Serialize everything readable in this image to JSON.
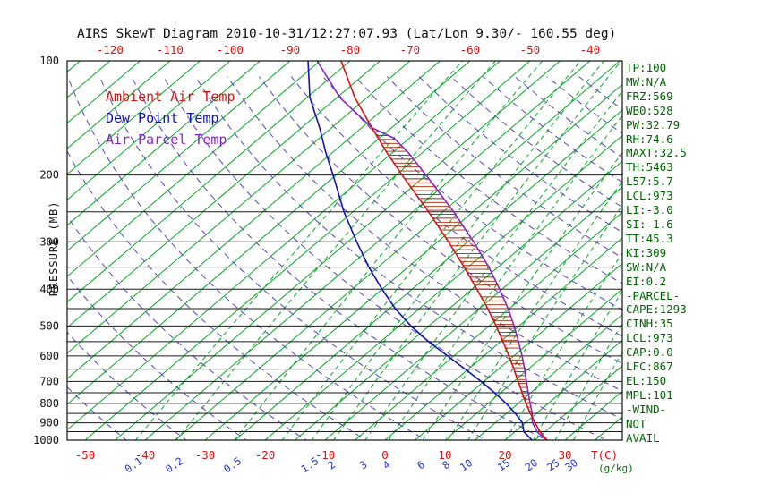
{
  "title": "AIRS SkewT Diagram 2010-10-31/12:27:07.93 (Lat/Lon 9.30/- 160.55 deg)",
  "axes": {
    "pressure_label": "PRESSURE (MB)",
    "pressure_ticks": [
      100,
      200,
      300,
      400,
      500,
      600,
      700,
      800,
      900,
      1000
    ],
    "top_temp_ticks": [
      -120,
      -110,
      -100,
      -90,
      -80,
      -70,
      -60,
      -50,
      -40
    ],
    "bottom_temp_ticks": [
      -50,
      -40,
      -30,
      -20,
      -10,
      0,
      10,
      20,
      30
    ],
    "mixing_ratio_ticks": [
      0.1,
      0.2,
      0.5,
      1.5,
      2,
      3,
      4,
      6,
      8,
      10,
      15,
      20,
      25,
      30
    ],
    "temp_unit_label": "T(C)",
    "mixing_unit_label": "(g/kg)"
  },
  "legend": [
    {
      "label": "Ambient Air Temp",
      "color": "#dd1111"
    },
    {
      "label": "Dew Point Temp",
      "color": "#1111bb"
    },
    {
      "label": "Air Parcel Temp",
      "color": "#8822cc"
    }
  ],
  "stats_panel": [
    "TP:100",
    "MW:N/A",
    "FRZ:569",
    "WB0:528",
    "PW:32.79",
    "RH:74.6",
    "MAXT:32.5",
    "TH:5463",
    "L57:5.7",
    "LCL:973",
    "LI:-3.0",
    "SI:-1.6",
    "TT:45.3",
    "KI:309",
    "SW:N/A",
    "EI:0.2",
    "-PARCEL-",
    "CAPE:1293",
    "CINH:35",
    "LCL:973",
    "CAP:0.0",
    "LFC:867",
    "EL:150",
    "MPL:101",
    "-WIND-",
    "NOT",
    "AVAIL"
  ],
  "colors": {
    "isotherm": "#00aa22",
    "mixing_ratio": "#00aa22",
    "dry_adiabat": "#5544bb",
    "pressure_line": "#1a1a1a",
    "hatch": "#aa2200",
    "stats_text": "#006600",
    "top_axis_text": "#dd1111",
    "bottom_temp_text": "#dd1111",
    "mixing_text": "#2233cc",
    "gkg_text": "#007700"
  },
  "chart_data": {
    "type": "line",
    "subtype": "skewt-logp",
    "pressure_axis": {
      "min": 100,
      "max": 1000,
      "scale": "log"
    },
    "isotherms": {
      "min": -130,
      "max": 45,
      "step": 5
    },
    "pressure_lines": [
      100,
      200,
      250,
      300,
      350,
      400,
      450,
      500,
      550,
      600,
      650,
      700,
      750,
      800,
      850,
      900,
      950,
      1000
    ],
    "mixing_ratio_lines": [
      0.1,
      0.2,
      0.5,
      1,
      1.5,
      2,
      3,
      4,
      6,
      8,
      10,
      15,
      20,
      25,
      30
    ],
    "dry_adiabats_theta_K": [
      230,
      240,
      250,
      260,
      270,
      280,
      290,
      300,
      310,
      320,
      330,
      340,
      350,
      360,
      370,
      380,
      390,
      400,
      410,
      420,
      430,
      440
    ],
    "cape_region": {
      "from_pressure": 867,
      "to_pressure": 150
    },
    "series": [
      {
        "name": "Ambient Air Temp",
        "color": "#dd1111",
        "points": [
          [
            1000,
            27.0
          ],
          [
            950,
            24.2
          ],
          [
            900,
            21.6
          ],
          [
            850,
            19.0
          ],
          [
            800,
            16.3
          ],
          [
            750,
            13.6
          ],
          [
            700,
            10.7
          ],
          [
            650,
            7.6
          ],
          [
            600,
            4.2
          ],
          [
            550,
            0.4
          ],
          [
            500,
            -3.8
          ],
          [
            450,
            -8.6
          ],
          [
            400,
            -14.2
          ],
          [
            350,
            -20.6
          ],
          [
            300,
            -28.2
          ],
          [
            250,
            -37.4
          ],
          [
            200,
            -49.0
          ],
          [
            175,
            -55.8
          ],
          [
            150,
            -63.3
          ],
          [
            125,
            -72.0
          ],
          [
            100,
            -81.5
          ]
        ]
      },
      {
        "name": "Dew Point Temp",
        "color": "#1111bb",
        "points": [
          [
            1000,
            24.5
          ],
          [
            950,
            21.5
          ],
          [
            900,
            19.5
          ],
          [
            850,
            16.5
          ],
          [
            800,
            13.0
          ],
          [
            750,
            9.0
          ],
          [
            700,
            4.5
          ],
          [
            650,
            -0.5
          ],
          [
            600,
            -6.0
          ],
          [
            550,
            -12.0
          ],
          [
            500,
            -18.0
          ],
          [
            450,
            -24.0
          ],
          [
            400,
            -30.0
          ],
          [
            350,
            -36.5
          ],
          [
            300,
            -43.5
          ],
          [
            250,
            -51.5
          ],
          [
            200,
            -60.5
          ],
          [
            175,
            -66.0
          ],
          [
            150,
            -72.0
          ],
          [
            125,
            -79.5
          ],
          [
            100,
            -87.0
          ]
        ]
      },
      {
        "name": "Air Parcel Temp",
        "color": "#8822cc",
        "points": [
          [
            1000,
            27.0
          ],
          [
            973,
            25.2
          ],
          [
            950,
            23.7
          ],
          [
            900,
            21.2
          ],
          [
            867,
            19.9
          ],
          [
            850,
            19.3
          ],
          [
            800,
            17.0
          ],
          [
            750,
            14.6
          ],
          [
            700,
            12.1
          ],
          [
            650,
            9.4
          ],
          [
            600,
            6.4
          ],
          [
            550,
            3.0
          ],
          [
            500,
            -0.8
          ],
          [
            450,
            -5.2
          ],
          [
            400,
            -10.4
          ],
          [
            350,
            -16.5
          ],
          [
            300,
            -24.0
          ],
          [
            250,
            -33.2
          ],
          [
            200,
            -45.0
          ],
          [
            175,
            -52.2
          ],
          [
            160,
            -57.5
          ],
          [
            150,
            -63.3
          ],
          [
            125,
            -74.5
          ],
          [
            100,
            -85.5
          ]
        ]
      }
    ]
  }
}
